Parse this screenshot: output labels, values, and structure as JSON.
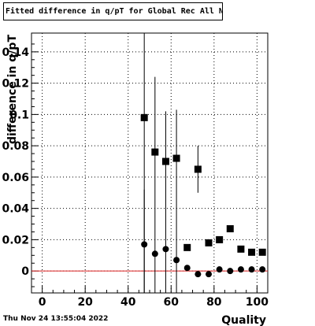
{
  "title": "Fitted difference in q/pT for Global Rec All NoHits",
  "timestamp": "Thu Nov 24 13:55:04 2022",
  "chart_data": {
    "type": "scatter",
    "title": "Fitted difference in q/pT for Global Rec All NoHits",
    "xlabel": "Quality",
    "ylabel": "difference in q/pT",
    "xlim": [
      -5,
      105
    ],
    "ylim": [
      -0.014,
      0.152
    ],
    "xticks": [
      0,
      20,
      40,
      60,
      80,
      100
    ],
    "xtick_labels": [
      "0",
      "20",
      "40",
      "60",
      "80",
      "100"
    ],
    "yticks": [
      0,
      0.02,
      0.04,
      0.06,
      0.08,
      0.1,
      0.12,
      0.14
    ],
    "ytick_labels": [
      "0",
      "0.02",
      "0.04",
      "0.06",
      "0.08",
      "0.1",
      "0.12",
      "0.14"
    ],
    "grid": true,
    "reference_line": {
      "y": 0,
      "color": "#dd2222"
    },
    "series": [
      {
        "marker": "square",
        "points": [
          {
            "x": 47.5,
            "y": 0.098,
            "err": 0.152
          },
          {
            "x": 52.5,
            "y": 0.076,
            "err": 0.0
          },
          {
            "x": 57.5,
            "y": 0.07,
            "err": 0.0
          },
          {
            "x": 62.5,
            "y": 0.072,
            "err": 0.0
          },
          {
            "x": 67.5,
            "y": 0.015,
            "err": 0.0
          },
          {
            "x": 72.5,
            "y": 0.065,
            "err": 0.015
          },
          {
            "x": 77.5,
            "y": 0.018,
            "err": 0.0
          },
          {
            "x": 82.5,
            "y": 0.02,
            "err": 0.0
          },
          {
            "x": 87.5,
            "y": 0.027,
            "err": 0.0
          },
          {
            "x": 92.5,
            "y": 0.014,
            "err": 0.0
          },
          {
            "x": 97.5,
            "y": 0.012,
            "err": 0.0
          },
          {
            "x": 102.5,
            "y": 0.012,
            "err": 0.0
          }
        ]
      },
      {
        "marker": "circle",
        "points": [
          {
            "x": 47.5,
            "y": 0.017,
            "err": 0.035
          },
          {
            "x": 52.5,
            "y": 0.011,
            "err": 0.113
          },
          {
            "x": 57.5,
            "y": 0.014,
            "err": 0.088
          },
          {
            "x": 62.5,
            "y": 0.007,
            "err": 0.096
          },
          {
            "x": 67.5,
            "y": 0.002,
            "err": 0.0
          },
          {
            "x": 72.5,
            "y": -0.002,
            "err": 0.0
          },
          {
            "x": 77.5,
            "y": -0.002,
            "err": 0.0
          },
          {
            "x": 82.5,
            "y": 0.001,
            "err": 0.0
          },
          {
            "x": 87.5,
            "y": 0.0,
            "err": 0.0
          },
          {
            "x": 92.5,
            "y": 0.001,
            "err": 0.0
          },
          {
            "x": 97.5,
            "y": 0.001,
            "err": 0.0
          },
          {
            "x": 102.5,
            "y": 0.001,
            "err": 0.0
          }
        ]
      }
    ],
    "colors": {
      "marker": "#000000",
      "grid": "#000000",
      "axis": "#000000"
    }
  }
}
